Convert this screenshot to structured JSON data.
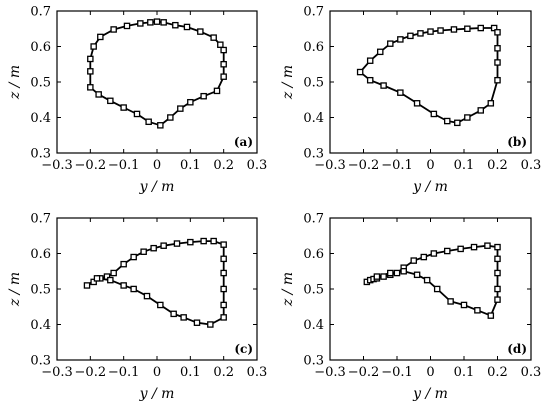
{
  "chart_data": [
    {
      "type": "line",
      "panel_label": "(a)",
      "xlabel": "y / m",
      "ylabel": "z / m",
      "xlim": [
        -0.3,
        0.3
      ],
      "ylim": [
        0.3,
        0.7
      ],
      "xticks": [
        "−0.3",
        "−0.2",
        "−0.1",
        "0",
        "0.1",
        "0.2",
        "0.3"
      ],
      "yticks": [
        "0.3",
        "0.4",
        "0.5",
        "0.6",
        "0.7"
      ],
      "grid": false,
      "closed": true,
      "x": [
        0.0,
        0.02,
        0.055,
        0.09,
        0.13,
        0.17,
        0.19,
        0.2,
        0.2,
        0.2,
        0.18,
        0.14,
        0.1,
        0.07,
        0.04,
        0.01,
        -0.025,
        -0.06,
        -0.1,
        -0.14,
        -0.175,
        -0.2,
        -0.2,
        -0.2,
        -0.19,
        -0.17,
        -0.13,
        -0.09,
        -0.05,
        -0.02
      ],
      "y": [
        0.67,
        0.668,
        0.66,
        0.655,
        0.642,
        0.625,
        0.605,
        0.59,
        0.55,
        0.515,
        0.475,
        0.46,
        0.443,
        0.425,
        0.4,
        0.378,
        0.388,
        0.41,
        0.428,
        0.447,
        0.465,
        0.485,
        0.53,
        0.565,
        0.6,
        0.627,
        0.648,
        0.658,
        0.665,
        0.668
      ]
    },
    {
      "type": "line",
      "panel_label": "(b)",
      "xlabel": "y / m",
      "ylabel": "z / m",
      "xlim": [
        -0.3,
        0.3
      ],
      "ylim": [
        0.3,
        0.7
      ],
      "xticks": [
        "−0.3",
        "−0.2",
        "−0.1",
        "0",
        "0.1",
        "0.2",
        "0.3"
      ],
      "yticks": [
        "0.3",
        "0.4",
        "0.5",
        "0.6",
        "0.7"
      ],
      "grid": false,
      "closed": true,
      "x": [
        -0.21,
        -0.18,
        -0.15,
        -0.12,
        -0.09,
        -0.06,
        -0.03,
        0.0,
        0.03,
        0.07,
        0.11,
        0.15,
        0.19,
        0.2,
        0.2,
        0.2,
        0.2,
        0.18,
        0.15,
        0.11,
        0.08,
        0.05,
        0.01,
        -0.04,
        -0.09,
        -0.14,
        -0.18
      ],
      "y": [
        0.528,
        0.56,
        0.585,
        0.608,
        0.62,
        0.63,
        0.637,
        0.642,
        0.645,
        0.648,
        0.65,
        0.652,
        0.652,
        0.64,
        0.595,
        0.555,
        0.505,
        0.44,
        0.42,
        0.4,
        0.385,
        0.39,
        0.41,
        0.44,
        0.47,
        0.49,
        0.505
      ]
    },
    {
      "type": "line",
      "panel_label": "(c)",
      "xlabel": "y / m",
      "ylabel": "z / m",
      "xlim": [
        -0.3,
        0.3
      ],
      "ylim": [
        0.3,
        0.7
      ],
      "xticks": [
        "−0.3",
        "−0.2",
        "−0.1",
        "0",
        "0.1",
        "0.2",
        "0.3"
      ],
      "yticks": [
        "0.3",
        "0.4",
        "0.5",
        "0.6",
        "0.7"
      ],
      "grid": false,
      "closed": true,
      "x": [
        -0.21,
        -0.19,
        -0.17,
        -0.15,
        -0.13,
        -0.1,
        -0.07,
        -0.04,
        -0.01,
        0.02,
        0.06,
        0.1,
        0.14,
        0.17,
        0.2,
        0.2,
        0.2,
        0.2,
        0.2,
        0.2,
        0.16,
        0.12,
        0.08,
        0.05,
        0.01,
        -0.03,
        -0.07,
        -0.1,
        -0.14,
        -0.18
      ],
      "y": [
        0.51,
        0.52,
        0.53,
        0.535,
        0.545,
        0.57,
        0.59,
        0.605,
        0.615,
        0.622,
        0.628,
        0.632,
        0.635,
        0.635,
        0.625,
        0.585,
        0.545,
        0.5,
        0.455,
        0.42,
        0.4,
        0.405,
        0.42,
        0.43,
        0.455,
        0.48,
        0.5,
        0.51,
        0.525,
        0.53
      ]
    },
    {
      "type": "line",
      "panel_label": "(d)",
      "xlabel": "y / m",
      "ylabel": "z / m",
      "xlim": [
        -0.3,
        0.3
      ],
      "ylim": [
        0.3,
        0.7
      ],
      "xticks": [
        "−0.3",
        "−0.2",
        "−0.1",
        "0",
        "0.1",
        "0.2",
        "0.3"
      ],
      "yticks": [
        "0.3",
        "0.4",
        "0.5",
        "0.6",
        "0.7"
      ],
      "grid": false,
      "closed": true,
      "x": [
        -0.19,
        -0.18,
        -0.17,
        -0.16,
        -0.14,
        -0.12,
        -0.1,
        -0.08,
        -0.05,
        -0.02,
        0.01,
        0.05,
        0.09,
        0.13,
        0.17,
        0.2,
        0.2,
        0.2,
        0.2,
        0.2,
        0.18,
        0.14,
        0.1,
        0.06,
        0.02,
        -0.01,
        -0.04,
        -0.08,
        -0.12,
        -0.16
      ],
      "y": [
        0.52,
        0.525,
        0.528,
        0.53,
        0.535,
        0.54,
        0.545,
        0.56,
        0.58,
        0.59,
        0.6,
        0.607,
        0.613,
        0.618,
        0.622,
        0.618,
        0.585,
        0.545,
        0.5,
        0.47,
        0.425,
        0.44,
        0.455,
        0.465,
        0.5,
        0.525,
        0.54,
        0.55,
        0.545,
        0.535
      ]
    }
  ]
}
